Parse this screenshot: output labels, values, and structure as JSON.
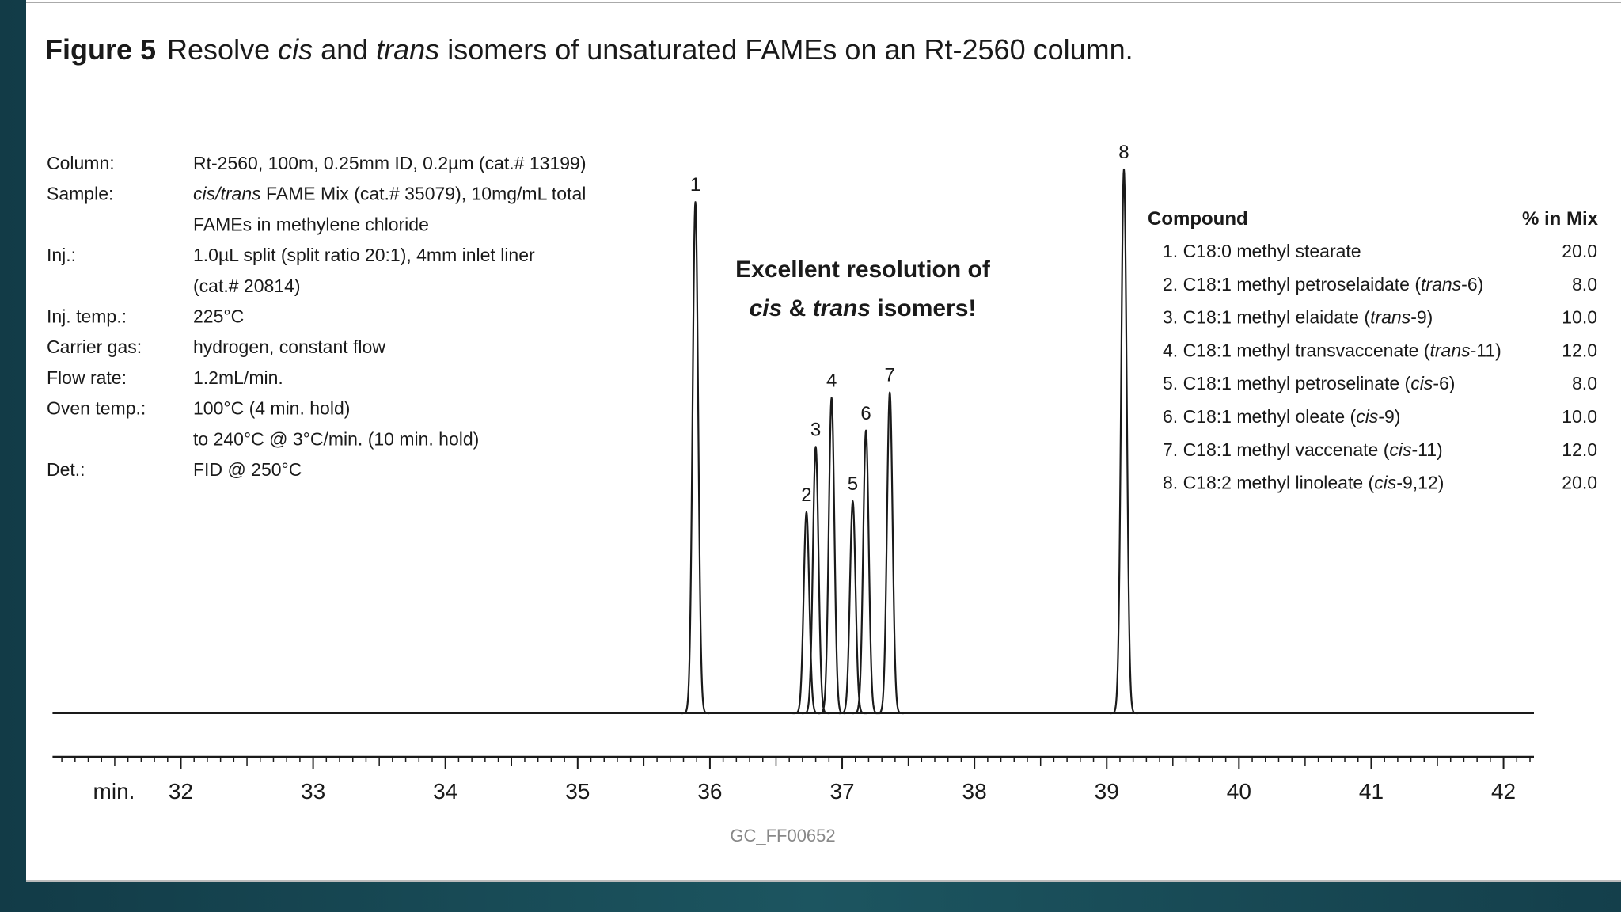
{
  "chart_data": {
    "type": "chromatogram",
    "figure_label": "Figure 5",
    "title": [
      "Resolve ",
      {
        "italic": "cis"
      },
      " and ",
      {
        "italic": "trans"
      },
      " isomers of unsaturated FAMEs on an Rt-2560 column."
    ],
    "conditions": [
      {
        "label": "Column:",
        "lines": [
          [
            "Rt-2560, 100m, 0.25mm ID, 0.2µm (cat.# 13199)"
          ]
        ]
      },
      {
        "label": "Sample:",
        "lines": [
          [
            {
              "italic": "cis/trans"
            },
            " FAME Mix (cat.# 35079), 10mg/mL total"
          ],
          [
            "FAMEs in methylene chloride"
          ]
        ]
      },
      {
        "label": "Inj.:",
        "lines": [
          [
            "1.0µL split (split ratio 20:1), 4mm inlet liner"
          ],
          [
            "(cat.# 20814)"
          ]
        ]
      },
      {
        "label": "Inj. temp.:",
        "lines": [
          [
            "225°C"
          ]
        ]
      },
      {
        "label": "Carrier gas:",
        "lines": [
          [
            "hydrogen, constant flow"
          ]
        ]
      },
      {
        "label": "Flow rate:",
        "lines": [
          [
            "1.2mL/min."
          ]
        ]
      },
      {
        "label": "Oven temp.:",
        "lines": [
          [
            "100°C (4 min. hold)"
          ],
          [
            "to 240°C @ 3°C/min. (10 min. hold)"
          ]
        ]
      },
      {
        "label": "Det.:",
        "lines": [
          [
            "FID @ 250°C"
          ]
        ]
      }
    ],
    "annotation": [
      [
        "Excellent resolution of"
      ],
      [
        {
          "italic": "cis"
        },
        " & ",
        {
          "italic": "trans"
        },
        " isomers!"
      ]
    ],
    "peak_labels": [
      "1",
      "2",
      "3",
      "4",
      "5",
      "6",
      "7",
      "8"
    ],
    "x": [
      35.89,
      36.73,
      36.8,
      36.92,
      37.08,
      37.18,
      37.36,
      39.13
    ],
    "values": [
      94,
      37,
      49,
      58,
      39,
      52,
      59,
      100
    ],
    "color": "#1a1a1a",
    "xlim": [
      31.03,
      42.23
    ],
    "xticks": [
      32,
      33,
      34,
      35,
      36,
      37,
      38,
      39,
      40,
      41,
      42
    ],
    "xlabel": "min.",
    "ylim": [
      0,
      100
    ],
    "table": {
      "headers": [
        "Compound",
        "% in Mix"
      ],
      "rows": [
        [
          [
            "1. C18:0 methyl stearate"
          ],
          "20.0"
        ],
        [
          [
            "2. C18:1 methyl petroselaidate (",
            {
              "italic": "trans"
            },
            "-6)"
          ],
          "8.0"
        ],
        [
          [
            "3. C18:1 methyl elaidate (",
            {
              "italic": "trans"
            },
            "-9)"
          ],
          "10.0"
        ],
        [
          [
            "4. C18:1 methyl transvaccenate (",
            {
              "italic": "trans"
            },
            "-11)"
          ],
          "12.0"
        ],
        [
          [
            "5. C18:1 methyl petroselinate (",
            {
              "italic": "cis"
            },
            "-6)"
          ],
          "8.0"
        ],
        [
          [
            "6. C18:1 methyl oleate (",
            {
              "italic": "cis"
            },
            "-9)"
          ],
          "10.0"
        ],
        [
          [
            "7. C18:1 methyl vaccenate (",
            {
              "italic": "cis"
            },
            "-11)"
          ],
          "12.0"
        ],
        [
          [
            "8. C18:2 methyl linoleate (",
            {
              "italic": "cis"
            },
            "-9,12)"
          ],
          "20.0"
        ]
      ]
    },
    "footnote": "GC_FF00652"
  }
}
